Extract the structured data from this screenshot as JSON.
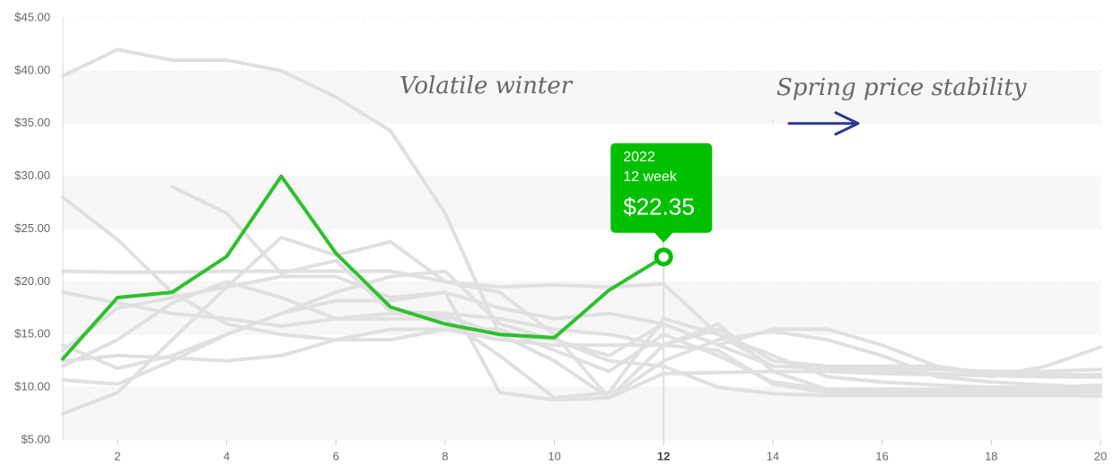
{
  "chart_data": {
    "type": "line",
    "x": [
      1,
      2,
      3,
      4,
      5,
      6,
      7,
      8,
      9,
      10,
      11,
      12,
      13,
      14,
      15,
      16,
      17,
      18,
      19,
      20
    ],
    "xlim": [
      1,
      20
    ],
    "xticks": [
      2,
      4,
      6,
      8,
      10,
      12,
      14,
      16,
      18,
      20
    ],
    "highlight_x": 12,
    "ylim": [
      5,
      45
    ],
    "yticks": [
      {
        "value": 5,
        "label": "$5.00"
      },
      {
        "value": 10,
        "label": "$10.00"
      },
      {
        "value": 15,
        "label": "$15.00"
      },
      {
        "value": 20,
        "label": "$20.00"
      },
      {
        "value": 25,
        "label": "$25.00"
      },
      {
        "value": 30,
        "label": "$30.00"
      },
      {
        "value": 35,
        "label": "$35.00"
      },
      {
        "value": 40,
        "label": "$40.00"
      },
      {
        "value": 45,
        "label": "$45.00"
      }
    ],
    "grid": true,
    "bands": true,
    "annotations": [
      "Volatile winter",
      "Spring price stability"
    ],
    "reference_x": 14,
    "tooltip_label": "12 week",
    "series": [
      {
        "color": "#e0e0e0",
        "values": [
          39.5,
          42,
          41,
          41,
          40,
          37.5,
          34.3,
          26.5,
          15,
          12.5,
          9,
          11.3,
          11.4,
          11.5,
          11.5,
          11.3,
          11.2,
          11.1,
          11,
          11
        ]
      },
      {
        "color": "#e0e0e0",
        "values": [
          28,
          24,
          19,
          16,
          15,
          14.5,
          14.5,
          15.5,
          15.5,
          13.5,
          11.5,
          15,
          13,
          10.5,
          9.8,
          9.8,
          9.8,
          9.8,
          9.8,
          9.8
        ]
      },
      {
        "color": "#e0e0e0",
        "values": [
          null,
          null,
          29,
          26.5,
          20.8,
          22,
          17.2,
          17,
          16.5,
          15.5,
          15,
          14,
          13.5,
          10.3,
          9.5,
          9.5,
          9.5,
          9.5,
          9.5,
          9.6
        ]
      },
      {
        "color": "#e0e0e0",
        "values": [
          21,
          20.9,
          20.9,
          21,
          21,
          21,
          21,
          20,
          19.5,
          19.7,
          19.5,
          19.8,
          15,
          12,
          11.8,
          11.5,
          11.3,
          11.2,
          11.2,
          11.2
        ]
      },
      {
        "color": "#e0e0e0",
        "values": [
          19,
          18,
          17,
          16.5,
          15.8,
          16.5,
          17,
          16.8,
          15,
          14.5,
          13,
          16,
          14,
          12,
          12,
          11.8,
          11.7,
          11.5,
          11.5,
          11.7
        ]
      },
      {
        "color": "#e0e0e0",
        "values": [
          12,
          14.5,
          18,
          20,
          18.5,
          16.5,
          16.5,
          16.5,
          13,
          9,
          9.5,
          16.5,
          15,
          13,
          11,
          10.5,
          10.2,
          10,
          10,
          10.2
        ]
      },
      {
        "color": "#e0e0e0",
        "values": [
          13.5,
          17.5,
          18.5,
          19.5,
          20.5,
          20.5,
          18.5,
          19,
          17.5,
          16.5,
          17,
          16,
          14,
          15.5,
          15.5,
          14,
          12,
          11,
          12,
          13.8
        ]
      },
      {
        "color": "#e0e0e0",
        "values": [
          7.5,
          9.5,
          14.5,
          19.5,
          24.2,
          22.5,
          23.8,
          20,
          19,
          15,
          9,
          14,
          15.5,
          12.5,
          12,
          12,
          12,
          11.3,
          11.1,
          11
        ]
      },
      {
        "color": "#e0e0e0",
        "values": [
          10.7,
          10.3,
          12.5,
          15,
          17,
          18.2,
          18.2,
          19,
          9.5,
          8.8,
          9,
          12.5,
          14.5,
          15.3,
          14.5,
          13,
          11,
          10.5,
          10.2,
          10
        ]
      },
      {
        "color": "#e0e0e0",
        "values": [
          12.5,
          13,
          12.8,
          12.5,
          13,
          14.5,
          15.5,
          15.5,
          14.5,
          14,
          14,
          14,
          16,
          11.5,
          9.8,
          9.5,
          9.2,
          9.2,
          9.2,
          9.2
        ]
      },
      {
        "color": "#e0e0e0",
        "values": [
          14,
          11.8,
          13,
          15,
          17,
          19,
          20.5,
          21,
          16,
          14.5,
          12.5,
          12,
          10,
          9.4,
          9.2,
          9.2,
          9.2,
          9.2,
          9.2,
          9.2
        ]
      },
      {
        "name": "2022",
        "color": "#2ec02e",
        "values": [
          12.7,
          18.5,
          19,
          22.4,
          30,
          22.7,
          17.6,
          16,
          15,
          14.7,
          19.2,
          22.35,
          null,
          null,
          null,
          null,
          null,
          null,
          null,
          null
        ],
        "value_labels": [
          null,
          null,
          null,
          null,
          null,
          null,
          null,
          null,
          null,
          null,
          null,
          "$22.35",
          null,
          null,
          null,
          null,
          null,
          null,
          null,
          null
        ]
      }
    ]
  }
}
